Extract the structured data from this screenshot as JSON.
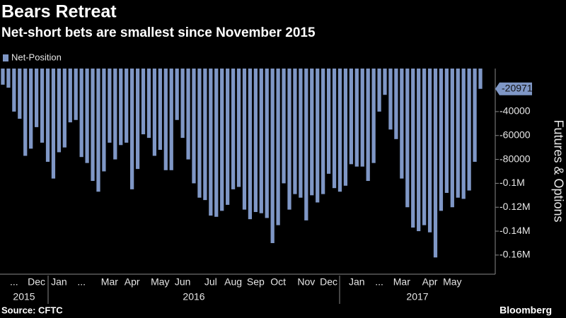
{
  "chart_data": {
    "type": "bar",
    "title": "Bears Retreat",
    "subtitle": "Net-short bets are smallest since November 2015",
    "legend": "Net-Position",
    "y_axis_label": "Futures & Options",
    "source": "Source: CFTC",
    "brand": "Bloomberg",
    "color": "#7f97c6",
    "grid": false,
    "years": [
      "2015",
      "2016",
      "2017"
    ],
    "categories": [
      null,
      null,
      "...",
      null,
      null,
      null,
      "Dec",
      null,
      null,
      null,
      "Jan",
      null,
      null,
      null,
      "...",
      null,
      null,
      null,
      null,
      "Mar",
      null,
      null,
      null,
      "Apr",
      null,
      null,
      null,
      null,
      "May",
      null,
      null,
      null,
      "Jun",
      null,
      null,
      null,
      null,
      "Jul",
      null,
      null,
      null,
      "Aug",
      null,
      null,
      null,
      "Sep",
      null,
      null,
      null,
      "Oct",
      null,
      null,
      null,
      null,
      "Nov",
      null,
      null,
      null,
      "Dec",
      null,
      null,
      null,
      null,
      "Jan",
      null,
      null,
      null,
      "...",
      null,
      null,
      null,
      "Mar",
      null,
      null,
      null,
      null,
      "Apr",
      null,
      null,
      null,
      "May",
      null,
      null,
      null,
      null,
      null
    ],
    "values": [
      -17500,
      -20000,
      -40000,
      -46000,
      -77000,
      -71000,
      -53000,
      -66000,
      -82000,
      -96000,
      -74000,
      -70000,
      -49000,
      -47000,
      -78000,
      -83000,
      -98000,
      -107000,
      -90000,
      -66000,
      -80000,
      -68000,
      -66000,
      -105000,
      -88000,
      -59000,
      -62000,
      -77000,
      -72000,
      -89000,
      -89000,
      -47000,
      -62000,
      -80000,
      -100000,
      -112000,
      -114000,
      -127000,
      -128000,
      -123000,
      -118000,
      -105000,
      -103000,
      -122000,
      -130000,
      -124000,
      -125000,
      -129000,
      -150000,
      -135000,
      -100000,
      -122000,
      -109000,
      -112000,
      -131000,
      -110000,
      -116000,
      -109000,
      -92000,
      -104000,
      -107000,
      -102000,
      -84000,
      -86000,
      -86000,
      -98000,
      -83000,
      -40000,
      -26000,
      -55000,
      -63000,
      -96000,
      -120000,
      -137000,
      -140000,
      -135000,
      -141000,
      -162000,
      -123000,
      -108000,
      -120000,
      -112000,
      -113000,
      -106000,
      -82000,
      -20971
    ],
    "ylim": [
      -176000,
      -4000
    ],
    "yticks": [
      -40000,
      -60000,
      -80000,
      {
        "value": -100000,
        "label": "-0.1M"
      },
      {
        "value": -120000,
        "label": "-0.12M"
      },
      {
        "value": -140000,
        "label": "-0.14M"
      },
      {
        "value": -160000,
        "label": "-0.16M"
      }
    ]
  }
}
